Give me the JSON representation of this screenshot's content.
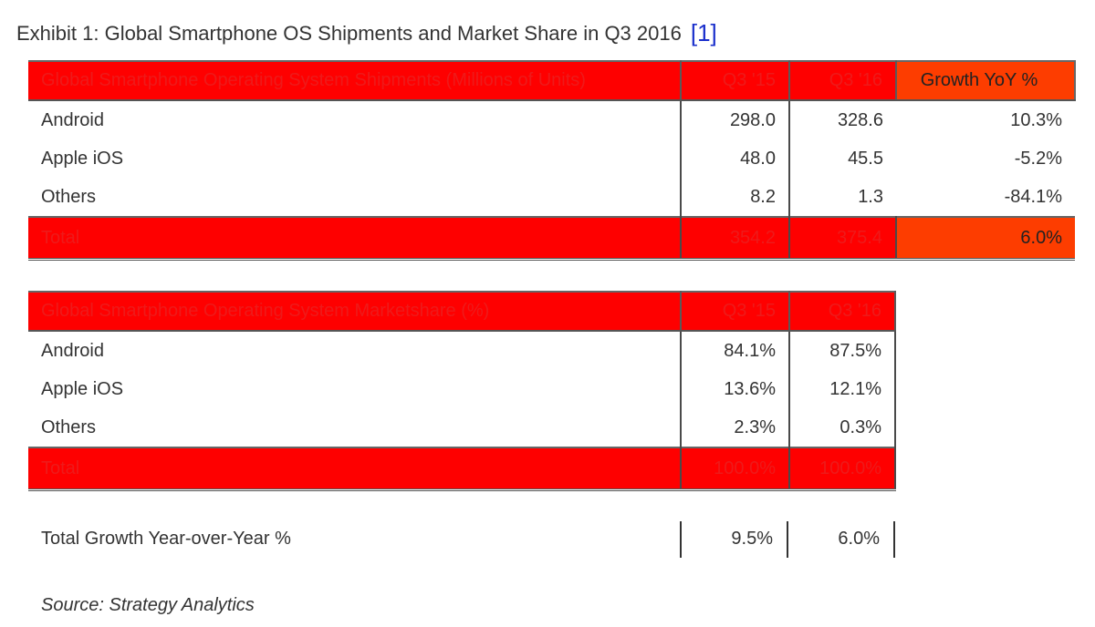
{
  "title": "Exhibit 1: Global Smartphone OS Shipments and Market Share in Q3 2016",
  "reference": "[1]",
  "shipments": {
    "header": {
      "label": "Global Smartphone Operating System Shipments (Millions of Units)",
      "col1": "Q3 '15",
      "col2": "Q3 '16",
      "col3": "Growth YoY %"
    },
    "rows": [
      {
        "label": "Android",
        "q3_15": "298.0",
        "q3_16": "328.6",
        "growth": "10.3%"
      },
      {
        "label": "Apple iOS",
        "q3_15": "48.0",
        "q3_16": "45.5",
        "growth": "-5.2%"
      },
      {
        "label": "Others",
        "q3_15": "8.2",
        "q3_16": "1.3",
        "growth": "-84.1%"
      }
    ],
    "total": {
      "label": "Total",
      "q3_15": "354.2",
      "q3_16": "375.4",
      "growth": "6.0%"
    }
  },
  "marketshare": {
    "header": {
      "label": "Global Smartphone Operating System Marketshare (%)",
      "col1": "Q3 '15",
      "col2": "Q3 '16"
    },
    "rows": [
      {
        "label": "Android",
        "q3_15": "84.1%",
        "q3_16": "87.5%"
      },
      {
        "label": "Apple iOS",
        "q3_15": "13.6%",
        "q3_16": "12.1%"
      },
      {
        "label": "Others",
        "q3_15": "2.3%",
        "q3_16": "0.3%"
      }
    ],
    "total": {
      "label": "Total",
      "q3_15": "100.0%",
      "q3_16": "100.0%"
    }
  },
  "total_growth": {
    "label": "Total Growth Year-over-Year %",
    "q3_15": "9.5%",
    "q3_16": "6.0%"
  },
  "source": "Source: Strategy Analytics",
  "colors": {
    "header_red": "#fe0000",
    "growth_orange": "#fd3d00",
    "link_blue": "#1a2fcc"
  }
}
